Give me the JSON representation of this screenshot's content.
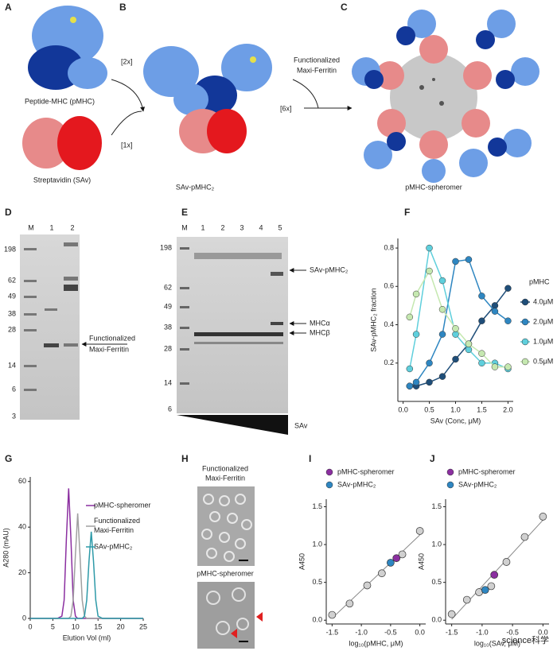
{
  "figure": {
    "letters": [
      "A",
      "B",
      "C",
      "D",
      "E",
      "F",
      "G",
      "H",
      "I",
      "J"
    ],
    "a": {
      "pmhc_caption": "Peptide-MHC (pMHC)",
      "sav_caption": "Streptavidin (SAv)"
    },
    "b": {
      "copies_pmhc": "[2x]",
      "copies_sav": "[1x]",
      "caption": "SAv-pMHC₂"
    },
    "c": {
      "reagent_lines": [
        "Functionalized",
        "Maxi-Ferritin"
      ],
      "copies": "[6x]",
      "caption": "pMHC-spheromer"
    },
    "d": {
      "lanes": [
        "M",
        "1",
        "2"
      ],
      "markers": [
        198,
        62,
        49,
        38,
        28,
        14,
        6,
        3
      ],
      "annotation_lines": [
        "Functionalized",
        "Maxi-Ferritin"
      ]
    },
    "e": {
      "lanes": [
        "M",
        "1",
        "2",
        "3",
        "4",
        "5"
      ],
      "markers": [
        198,
        62,
        49,
        38,
        28,
        14,
        6
      ],
      "annotations": [
        "SAv-pMHC₂",
        "MHCα",
        "MHCβ"
      ],
      "gradient_label": "SAv"
    },
    "h": {
      "top_lines": [
        "Functionalized",
        "Maxi-Ferritin"
      ],
      "bottom_caption": "pMHC-spheromer"
    },
    "watermark": "science科学"
  },
  "chart_data": [
    {
      "type": "line",
      "markers": true,
      "xlabel": "SAv (Conc, μM)",
      "ylabel": "SAv-pMHC₂ fraction",
      "legend_title": "pMHC",
      "x": [
        0.125,
        0.25,
        0.5,
        0.75,
        1.0,
        1.25,
        1.5,
        1.75,
        2.0
      ],
      "series": [
        {
          "name": "4.0μM",
          "color": "#1f4e79",
          "values": [
            0.08,
            0.08,
            0.1,
            0.13,
            0.22,
            0.3,
            0.42,
            0.5,
            0.59
          ]
        },
        {
          "name": "2.0μM",
          "color": "#2e86c1",
          "values": [
            0.08,
            0.1,
            0.2,
            0.35,
            0.73,
            0.74,
            0.55,
            0.47,
            0.42
          ]
        },
        {
          "name": "1.0μM",
          "color": "#5fcfdc",
          "values": [
            0.17,
            0.35,
            0.8,
            0.63,
            0.35,
            0.27,
            0.2,
            0.2,
            0.17
          ]
        },
        {
          "name": "0.5μM",
          "color": "#c5e8b0",
          "values": [
            0.44,
            0.56,
            0.68,
            0.48,
            0.38,
            0.3,
            0.25,
            0.18,
            0.18
          ]
        }
      ],
      "xlim": [
        -0.1,
        2.1
      ],
      "ylim": [
        0,
        0.85
      ],
      "xticks": [
        {
          "value": 0,
          "label": "0.0"
        },
        0.5,
        {
          "value": 1,
          "label": "1.0"
        },
        1.5,
        {
          "value": 2,
          "label": "2.0"
        }
      ],
      "yticks": [
        0.2,
        0.4,
        0.6,
        0.8
      ]
    },
    {
      "type": "line",
      "markers": false,
      "xlabel": "Elution Vol (ml)",
      "ylabel": "A280 (mAU)",
      "x": [
        0,
        5,
        6,
        7,
        7.5,
        8,
        8.5,
        9,
        9.5,
        10,
        10.5,
        11,
        11.5,
        12,
        12.5,
        13,
        13.5,
        14,
        14.5,
        15,
        16,
        17,
        25
      ],
      "series": [
        {
          "name": "pMHC-spheromer",
          "color": "#8b2fa0",
          "values": [
            0,
            0,
            0,
            1,
            8,
            35,
            57,
            35,
            8,
            1,
            0,
            0,
            0,
            0,
            0,
            0,
            0,
            0,
            0,
            0,
            0,
            0,
            0
          ]
        },
        {
          "name": "Functionalized Maxi-Ferritin",
          "color": "#a0a0a0",
          "values": [
            0,
            0,
            0,
            0,
            0,
            0,
            0,
            1,
            8,
            28,
            46,
            28,
            8,
            1,
            0,
            0,
            0,
            0,
            0,
            0,
            0,
            0,
            0
          ]
        },
        {
          "name": "SAv-pMHC₂",
          "color": "#2e9aa8",
          "values": [
            0,
            0,
            0,
            0,
            0,
            0,
            0,
            0,
            0,
            0,
            0,
            0,
            0,
            1,
            8,
            25,
            38,
            25,
            8,
            1,
            0,
            0,
            0
          ]
        }
      ],
      "xlim": [
        0,
        25
      ],
      "ylim": [
        0,
        62
      ],
      "xticks": [
        0,
        5,
        10,
        15,
        20,
        25
      ],
      "yticks": [
        0,
        20,
        40,
        60
      ]
    },
    {
      "type": "scatter",
      "xlabel": "log₁₀(pMHC, μM)",
      "ylabel": "A450",
      "series": [
        {
          "color": "#d0d0d0",
          "fit": true,
          "x": [
            -1.5,
            -1.2,
            -0.9,
            -0.65,
            -0.3,
            0.0
          ],
          "values": [
            0.07,
            0.22,
            0.46,
            0.62,
            0.87,
            1.18
          ]
        },
        {
          "name": "pMHC-spheromer",
          "color": "#8b2fa0",
          "x": [
            -0.4
          ],
          "values": [
            0.82
          ]
        },
        {
          "name": "SAv-pMHC₂",
          "color": "#2e86c1",
          "x": [
            -0.5
          ],
          "values": [
            0.76
          ]
        }
      ],
      "xlim": [
        -1.6,
        0.1
      ],
      "ylim": [
        -0.05,
        1.6
      ],
      "xticks": [
        -1.5,
        {
          "value": -1,
          "label": "-1.0"
        },
        -0.5,
        {
          "value": 0,
          "label": "0.0"
        }
      ],
      "yticks": [
        {
          "value": 0,
          "label": "0.0"
        },
        0.5,
        {
          "value": 1,
          "label": "1.0"
        },
        1.5
      ]
    },
    {
      "type": "scatter",
      "xlabel": "log₁₀(SAv, μM)",
      "ylabel": "A450",
      "series": [
        {
          "color": "#d0d0d0",
          "fit": true,
          "x": [
            -1.5,
            -1.25,
            -1.05,
            -0.85,
            -0.6,
            -0.3,
            0.0
          ],
          "values": [
            0.08,
            0.27,
            0.37,
            0.45,
            0.77,
            1.1,
            1.37
          ]
        },
        {
          "name": "pMHC-spheromer",
          "color": "#8b2fa0",
          "x": [
            -0.8
          ],
          "values": [
            0.6
          ]
        },
        {
          "name": "SAv-pMHC₂",
          "color": "#2e86c1",
          "x": [
            -0.95
          ],
          "values": [
            0.4
          ]
        }
      ],
      "xlim": [
        -1.6,
        0.1
      ],
      "ylim": [
        -0.05,
        1.6
      ],
      "xticks": [
        -1.5,
        {
          "value": -1,
          "label": "-1.0"
        },
        -0.5,
        {
          "value": 0,
          "label": "0.0"
        }
      ],
      "yticks": [
        {
          "value": 0,
          "label": "0.0"
        },
        0.5,
        {
          "value": 1,
          "label": "1.0"
        },
        1.5
      ]
    }
  ]
}
